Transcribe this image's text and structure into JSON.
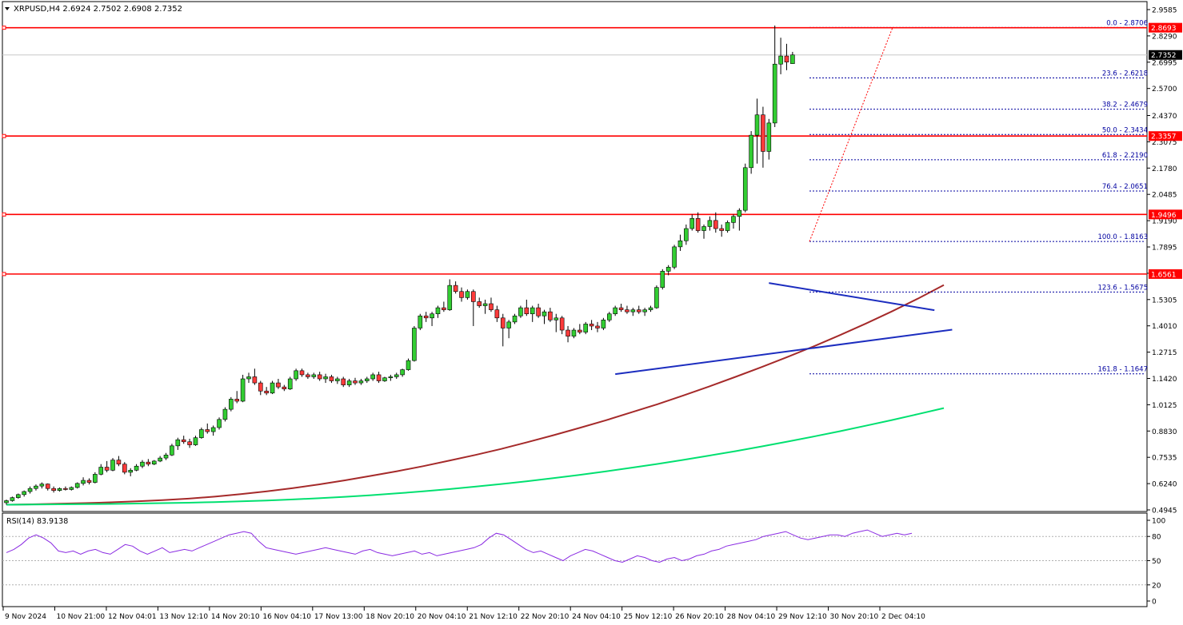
{
  "header": {
    "symbol_line": "XRPUSD,H4  2.6924 2.7502 2.6908 2.7352",
    "rsi_line": "RSI(14) 83.9138"
  },
  "colors": {
    "bull": "#32cd32",
    "bear": "#ff3b3b",
    "resistance": "#ff0000",
    "fib": "#0000a0",
    "triangle": "#1c2dbf",
    "ma_slow": "#00e070",
    "ma_mid": "#a52a2a",
    "rsi": "#8a2be2",
    "axis_text": "#000000"
  },
  "chart_data": {
    "type": "candlestick",
    "symbol": "XRPUSD",
    "timeframe": "H4",
    "ohlc_last": {
      "open": 2.6924,
      "high": 2.7502,
      "low": 2.6908,
      "close": 2.7352
    },
    "price_axis_ticks": [
      "2.9585",
      "2.8290",
      "2.6995",
      "2.5700",
      "2.4370",
      "2.3075",
      "2.1780",
      "2.0485",
      "1.9190",
      "1.7895",
      "1.6600",
      "1.5305",
      "1.4010",
      "1.2715",
      "1.1420",
      "1.0125",
      "0.8830",
      "0.7535",
      "0.6240",
      "0.4945"
    ],
    "time_axis_labels": [
      "9 Nov 2024",
      "10 Nov 21:00",
      "12 Nov 04:01",
      "13 Nov 12:10",
      "14 Nov 20:10",
      "16 Nov 04:10",
      "17 Nov 13:00",
      "18 Nov 20:10",
      "20 Nov 04:10",
      "21 Nov 12:10",
      "22 Nov 20:10",
      "24 Nov 04:10",
      "25 Nov 12:10",
      "26 Nov 20:10",
      "28 Nov 04:10",
      "29 Nov 12:10",
      "30 Nov 20:10",
      "2 Dec 04:10"
    ],
    "ylim": [
      0.4945,
      2.9585
    ],
    "current_price_label": "2.7352",
    "resistance_levels": [
      {
        "value": 2.8693,
        "label": "2.8693"
      },
      {
        "value": 2.3357,
        "label": "2.3357"
      },
      {
        "value": 1.9496,
        "label": "1.9496"
      },
      {
        "value": 1.6561,
        "label": "1.6561"
      }
    ],
    "fibonacci": [
      {
        "level": 0.0,
        "value": 2.8706,
        "label": "0.0 - 2.8706"
      },
      {
        "level": 23.6,
        "value": 2.6218,
        "label": "23.6 - 2.6218"
      },
      {
        "level": 38.2,
        "value": 2.4679,
        "label": "38.2 - 2.4679"
      },
      {
        "level": 50.0,
        "value": 2.3434,
        "label": "50.0 - 2.3434"
      },
      {
        "level": 61.8,
        "value": 2.219,
        "label": "61.8 - 2.2190"
      },
      {
        "level": 76.4,
        "value": 2.0651,
        "label": "76.4 - 2.0651"
      },
      {
        "level": 100.0,
        "value": 1.8163,
        "label": "100.0 - 1.8163"
      },
      {
        "level": 123.6,
        "value": 1.5675,
        "label": "123.6 - 1.5675"
      },
      {
        "level": 161.8,
        "value": 1.1647,
        "label": "161.8 - 1.1647"
      }
    ],
    "triangle_lines": [
      {
        "from": [
          129,
          1.612
        ],
        "to": [
          157,
          1.478
        ]
      },
      {
        "from": [
          103,
          1.163
        ],
        "to": [
          160,
          1.382
        ]
      }
    ],
    "candles": [
      [
        0.53,
        0.545,
        0.52,
        0.54
      ],
      [
        0.54,
        0.56,
        0.535,
        0.555
      ],
      [
        0.555,
        0.575,
        0.55,
        0.57
      ],
      [
        0.57,
        0.59,
        0.56,
        0.585
      ],
      [
        0.585,
        0.61,
        0.575,
        0.6
      ],
      [
        0.6,
        0.62,
        0.59,
        0.612
      ],
      [
        0.612,
        0.63,
        0.6,
        0.622
      ],
      [
        0.622,
        0.625,
        0.59,
        0.6
      ],
      [
        0.6,
        0.61,
        0.58,
        0.59
      ],
      [
        0.59,
        0.605,
        0.585,
        0.6
      ],
      [
        0.6,
        0.61,
        0.59,
        0.595
      ],
      [
        0.595,
        0.61,
        0.59,
        0.605
      ],
      [
        0.605,
        0.63,
        0.6,
        0.625
      ],
      [
        0.625,
        0.655,
        0.615,
        0.64
      ],
      [
        0.64,
        0.65,
        0.62,
        0.63
      ],
      [
        0.63,
        0.68,
        0.625,
        0.67
      ],
      [
        0.67,
        0.72,
        0.665,
        0.705
      ],
      [
        0.705,
        0.735,
        0.68,
        0.69
      ],
      [
        0.69,
        0.75,
        0.685,
        0.74
      ],
      [
        0.74,
        0.76,
        0.71,
        0.72
      ],
      [
        0.72,
        0.73,
        0.67,
        0.68
      ],
      [
        0.68,
        0.7,
        0.66,
        0.69
      ],
      [
        0.69,
        0.72,
        0.685,
        0.71
      ],
      [
        0.71,
        0.74,
        0.7,
        0.73
      ],
      [
        0.73,
        0.745,
        0.71,
        0.72
      ],
      [
        0.72,
        0.74,
        0.715,
        0.735
      ],
      [
        0.735,
        0.76,
        0.73,
        0.75
      ],
      [
        0.75,
        0.775,
        0.74,
        0.765
      ],
      [
        0.765,
        0.82,
        0.76,
        0.81
      ],
      [
        0.81,
        0.85,
        0.79,
        0.84
      ],
      [
        0.84,
        0.86,
        0.82,
        0.83
      ],
      [
        0.83,
        0.845,
        0.8,
        0.815
      ],
      [
        0.815,
        0.86,
        0.81,
        0.85
      ],
      [
        0.85,
        0.9,
        0.845,
        0.89
      ],
      [
        0.89,
        0.92,
        0.87,
        0.88
      ],
      [
        0.88,
        0.91,
        0.86,
        0.9
      ],
      [
        0.9,
        0.95,
        0.89,
        0.94
      ],
      [
        0.94,
        1.0,
        0.93,
        0.99
      ],
      [
        0.99,
        1.05,
        0.98,
        1.04
      ],
      [
        1.04,
        1.08,
        1.02,
        1.03
      ],
      [
        1.03,
        1.16,
        1.025,
        1.14
      ],
      [
        1.14,
        1.17,
        1.12,
        1.15
      ],
      [
        1.15,
        1.19,
        1.11,
        1.12
      ],
      [
        1.12,
        1.13,
        1.06,
        1.08
      ],
      [
        1.08,
        1.1,
        1.06,
        1.07
      ],
      [
        1.07,
        1.13,
        1.065,
        1.12
      ],
      [
        1.12,
        1.14,
        1.09,
        1.1
      ],
      [
        1.1,
        1.11,
        1.08,
        1.09
      ],
      [
        1.09,
        1.15,
        1.085,
        1.14
      ],
      [
        1.14,
        1.19,
        1.13,
        1.18
      ],
      [
        1.18,
        1.19,
        1.15,
        1.16
      ],
      [
        1.16,
        1.17,
        1.14,
        1.15
      ],
      [
        1.15,
        1.17,
        1.14,
        1.16
      ],
      [
        1.16,
        1.175,
        1.13,
        1.14
      ],
      [
        1.14,
        1.165,
        1.12,
        1.15
      ],
      [
        1.15,
        1.16,
        1.12,
        1.13
      ],
      [
        1.13,
        1.15,
        1.115,
        1.14
      ],
      [
        1.14,
        1.15,
        1.1,
        1.11
      ],
      [
        1.11,
        1.14,
        1.1,
        1.13
      ],
      [
        1.13,
        1.145,
        1.11,
        1.12
      ],
      [
        1.12,
        1.14,
        1.11,
        1.13
      ],
      [
        1.13,
        1.15,
        1.12,
        1.14
      ],
      [
        1.14,
        1.17,
        1.13,
        1.16
      ],
      [
        1.16,
        1.175,
        1.12,
        1.13
      ],
      [
        1.13,
        1.15,
        1.125,
        1.145
      ],
      [
        1.145,
        1.16,
        1.13,
        1.15
      ],
      [
        1.15,
        1.17,
        1.14,
        1.16
      ],
      [
        1.16,
        1.19,
        1.15,
        1.185
      ],
      [
        1.185,
        1.24,
        1.18,
        1.23
      ],
      [
        1.23,
        1.4,
        1.225,
        1.39
      ],
      [
        1.39,
        1.46,
        1.38,
        1.45
      ],
      [
        1.45,
        1.47,
        1.42,
        1.44
      ],
      [
        1.44,
        1.47,
        1.4,
        1.46
      ],
      [
        1.46,
        1.5,
        1.44,
        1.49
      ],
      [
        1.49,
        1.52,
        1.47,
        1.48
      ],
      [
        1.48,
        1.63,
        1.475,
        1.6
      ],
      [
        1.6,
        1.62,
        1.56,
        1.57
      ],
      [
        1.57,
        1.59,
        1.52,
        1.54
      ],
      [
        1.54,
        1.58,
        1.53,
        1.57
      ],
      [
        1.57,
        1.58,
        1.4,
        1.52
      ],
      [
        1.52,
        1.54,
        1.49,
        1.5
      ],
      [
        1.5,
        1.53,
        1.46,
        1.51
      ],
      [
        1.51,
        1.54,
        1.47,
        1.48
      ],
      [
        1.48,
        1.5,
        1.42,
        1.44
      ],
      [
        1.44,
        1.46,
        1.3,
        1.39
      ],
      [
        1.39,
        1.43,
        1.34,
        1.42
      ],
      [
        1.42,
        1.46,
        1.41,
        1.45
      ],
      [
        1.45,
        1.5,
        1.44,
        1.49
      ],
      [
        1.49,
        1.53,
        1.45,
        1.46
      ],
      [
        1.46,
        1.5,
        1.42,
        1.49
      ],
      [
        1.49,
        1.51,
        1.44,
        1.45
      ],
      [
        1.45,
        1.48,
        1.41,
        1.47
      ],
      [
        1.47,
        1.49,
        1.42,
        1.43
      ],
      [
        1.43,
        1.46,
        1.37,
        1.44
      ],
      [
        1.44,
        1.45,
        1.36,
        1.38
      ],
      [
        1.38,
        1.4,
        1.32,
        1.35
      ],
      [
        1.35,
        1.39,
        1.34,
        1.38
      ],
      [
        1.38,
        1.41,
        1.36,
        1.37
      ],
      [
        1.37,
        1.42,
        1.36,
        1.41
      ],
      [
        1.41,
        1.43,
        1.38,
        1.4
      ],
      [
        1.4,
        1.42,
        1.37,
        1.39
      ],
      [
        1.39,
        1.44,
        1.38,
        1.43
      ],
      [
        1.43,
        1.47,
        1.42,
        1.46
      ],
      [
        1.46,
        1.5,
        1.45,
        1.49
      ],
      [
        1.49,
        1.51,
        1.47,
        1.48
      ],
      [
        1.48,
        1.5,
        1.46,
        1.47
      ],
      [
        1.47,
        1.49,
        1.45,
        1.48
      ],
      [
        1.48,
        1.5,
        1.46,
        1.47
      ],
      [
        1.47,
        1.49,
        1.45,
        1.48
      ],
      [
        1.48,
        1.5,
        1.47,
        1.49
      ],
      [
        1.49,
        1.6,
        1.485,
        1.59
      ],
      [
        1.59,
        1.68,
        1.58,
        1.67
      ],
      [
        1.67,
        1.7,
        1.65,
        1.69
      ],
      [
        1.69,
        1.8,
        1.68,
        1.79
      ],
      [
        1.79,
        1.85,
        1.77,
        1.82
      ],
      [
        1.82,
        1.9,
        1.8,
        1.88
      ],
      [
        1.88,
        1.95,
        1.87,
        1.93
      ],
      [
        1.93,
        1.96,
        1.86,
        1.87
      ],
      [
        1.87,
        1.9,
        1.83,
        1.89
      ],
      [
        1.89,
        1.94,
        1.87,
        1.92
      ],
      [
        1.92,
        1.96,
        1.86,
        1.88
      ],
      [
        1.88,
        1.9,
        1.84,
        1.87
      ],
      [
        1.87,
        1.92,
        1.86,
        1.91
      ],
      [
        1.91,
        1.95,
        1.88,
        1.94
      ],
      [
        1.94,
        1.98,
        1.87,
        1.97
      ],
      [
        1.97,
        2.2,
        1.96,
        2.18
      ],
      [
        2.18,
        2.36,
        2.15,
        2.34
      ],
      [
        2.34,
        2.52,
        2.2,
        2.44
      ],
      [
        2.44,
        2.48,
        2.18,
        2.26
      ],
      [
        2.26,
        2.42,
        2.22,
        2.4
      ],
      [
        2.4,
        2.88,
        2.38,
        2.69
      ],
      [
        2.69,
        2.82,
        2.64,
        2.73
      ],
      [
        2.73,
        2.79,
        2.66,
        2.7
      ],
      [
        2.6924,
        2.7502,
        2.6908,
        2.7352
      ]
    ],
    "series": [
      {
        "values": [
          0.52,
          0.522,
          0.525,
          0.528,
          0.532,
          0.537,
          0.543,
          0.55,
          0.56,
          0.572,
          0.586,
          0.602,
          0.62,
          0.64,
          0.662,
          0.685,
          0.71,
          0.737,
          0.765,
          0.795,
          0.828,
          0.862,
          0.898,
          0.935,
          0.975,
          1.015,
          1.058,
          1.103,
          1.15,
          1.198,
          1.248,
          1.3,
          1.355,
          1.412,
          1.472,
          1.535,
          1.602
        ]
      },
      {
        "values": [
          0.52,
          0.521,
          0.522,
          0.523,
          0.524,
          0.526,
          0.528,
          0.53,
          0.533,
          0.537,
          0.541,
          0.546,
          0.552,
          0.559,
          0.567,
          0.576,
          0.586,
          0.597,
          0.609,
          0.622,
          0.636,
          0.651,
          0.667,
          0.684,
          0.702,
          0.721,
          0.741,
          0.762,
          0.784,
          0.807,
          0.831,
          0.856,
          0.882,
          0.909,
          0.937,
          0.966,
          0.996
        ]
      }
    ],
    "rsi": {
      "label": "RSI(14)",
      "value": 83.9138,
      "ticks": [
        "100",
        "80",
        "50",
        "20",
        "0"
      ],
      "levels": [
        80,
        20
      ],
      "values": [
        60,
        64,
        70,
        78,
        82,
        78,
        72,
        62,
        60,
        62,
        58,
        62,
        64,
        60,
        58,
        64,
        70,
        68,
        62,
        58,
        62,
        66,
        60,
        62,
        64,
        62,
        66,
        70,
        74,
        78,
        82,
        84,
        86,
        84,
        74,
        66,
        64,
        62,
        60,
        58,
        60,
        62,
        64,
        66,
        64,
        62,
        60,
        58,
        62,
        64,
        60,
        58,
        56,
        58,
        60,
        62,
        58,
        60,
        56,
        58,
        60,
        62,
        64,
        66,
        70,
        78,
        84,
        82,
        76,
        70,
        64,
        60,
        62,
        58,
        54,
        50,
        56,
        60,
        64,
        62,
        58,
        54,
        50,
        48,
        52,
        56,
        54,
        50,
        48,
        52,
        54,
        50,
        52,
        56,
        58,
        62,
        64,
        68,
        70,
        72,
        74,
        76,
        80,
        82,
        84,
        86,
        82,
        78,
        76,
        78,
        80,
        82,
        82,
        80,
        84,
        86,
        88,
        84,
        80,
        82,
        84,
        82,
        84
      ]
    }
  }
}
